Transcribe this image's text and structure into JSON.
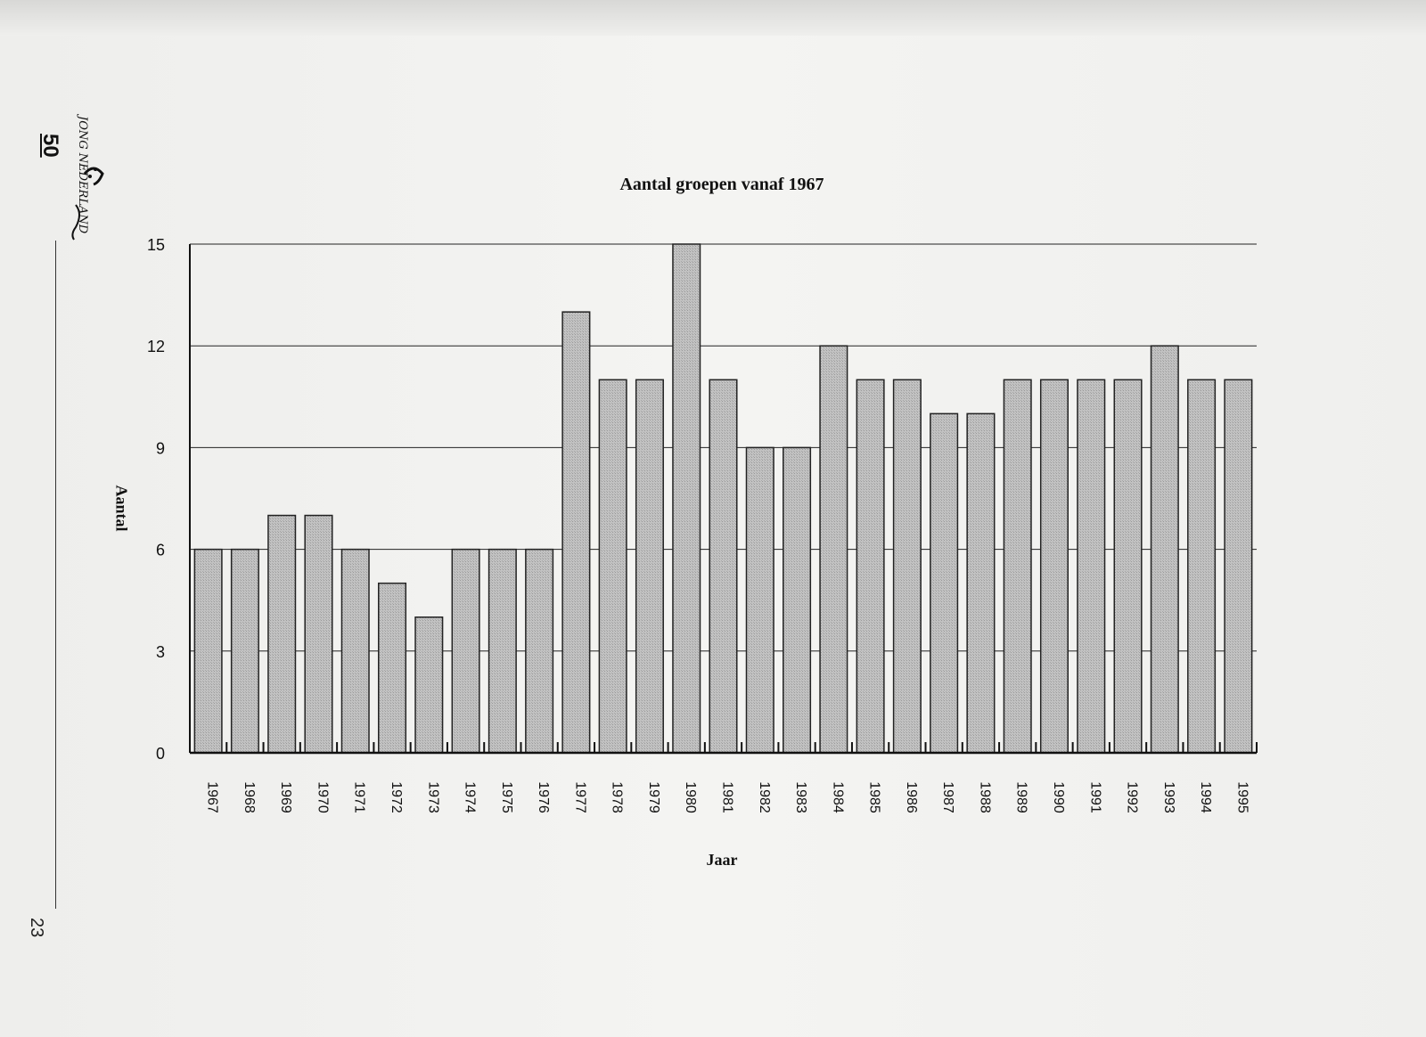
{
  "page": {
    "number": "23",
    "logo_number": "50",
    "logo_text": "JONG NEDERLAND",
    "logo_signature": "Genemp"
  },
  "chart_data": {
    "type": "bar",
    "title": "Aantal groepen vanaf 1967",
    "xlabel": "Jaar",
    "ylabel": "Aantal",
    "ylim": [
      0,
      15
    ],
    "yticks": [
      0,
      3,
      6,
      9,
      12,
      15
    ],
    "grid": true,
    "categories": [
      "1967",
      "1968",
      "1969",
      "1970",
      "1971",
      "1972",
      "1973",
      "1974",
      "1975",
      "1976",
      "1977",
      "1978",
      "1979",
      "1980",
      "1981",
      "1982",
      "1983",
      "1984",
      "1985",
      "1986",
      "1987",
      "1988",
      "1989",
      "1990",
      "1991",
      "1992",
      "1993",
      "1994",
      "1995"
    ],
    "values": [
      6,
      6,
      7,
      7,
      6,
      5,
      4,
      6,
      6,
      6,
      13,
      11,
      11,
      15,
      11,
      9,
      9,
      12,
      11,
      11,
      10,
      10,
      11,
      11,
      11,
      11,
      12,
      11,
      11
    ]
  },
  "colors": {
    "bar_fill": "#b4b4b4",
    "bar_stroke": "#222222",
    "grid": "#222222",
    "page": "#f0f0ee"
  }
}
